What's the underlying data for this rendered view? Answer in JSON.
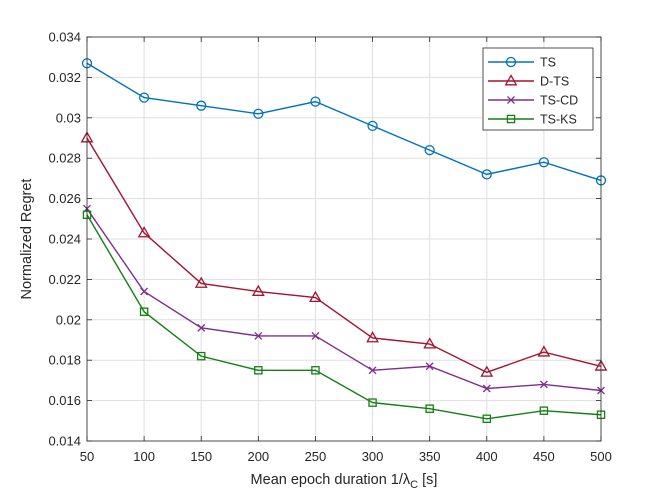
{
  "chart_data": {
    "type": "line",
    "title": "",
    "xlabel": "Mean epoch duration 1/λ",
    "xlabel_subscript": "C",
    "xlabel_unit": "[s]",
    "ylabel": "Normalized Regret",
    "xlim": [
      50,
      500
    ],
    "ylim": [
      0.014,
      0.034
    ],
    "grid": true,
    "legend_position": "top-right",
    "x": [
      50,
      100,
      150,
      200,
      250,
      300,
      350,
      400,
      450,
      500
    ],
    "x_tick_labels": [
      "50",
      "100",
      "150",
      "200",
      "250",
      "300",
      "350",
      "400",
      "450",
      "500"
    ],
    "y_ticks": [
      0.014,
      0.016,
      0.018,
      0.02,
      0.022,
      0.024,
      0.026,
      0.028,
      0.03,
      0.032,
      0.034
    ],
    "y_tick_labels": [
      "0.014",
      "0.016",
      "0.018",
      "0.02",
      "0.022",
      "0.024",
      "0.026",
      "0.028",
      "0.03",
      "0.032",
      "0.034"
    ],
    "series": [
      {
        "name": "TS",
        "color": "#0072BD",
        "marker": "circle",
        "values": [
          0.0327,
          0.031,
          0.0306,
          0.0302,
          0.0308,
          0.0296,
          0.0284,
          0.0272,
          0.0278,
          0.0269
        ]
      },
      {
        "name": "D-TS",
        "color": "#A2142F",
        "marker": "triangle",
        "values": [
          0.029,
          0.0243,
          0.0218,
          0.0214,
          0.0211,
          0.0191,
          0.0188,
          0.0174,
          0.0184,
          0.0177
        ]
      },
      {
        "name": "TS-CD",
        "color": "#7E2F8E",
        "marker": "x",
        "values": [
          0.0255,
          0.0214,
          0.0196,
          0.0192,
          0.0192,
          0.0175,
          0.0177,
          0.0166,
          0.0168,
          0.0165
        ]
      },
      {
        "name": "TS-KS",
        "color": "#138013",
        "marker": "square",
        "values": [
          0.0252,
          0.0204,
          0.0182,
          0.0175,
          0.0175,
          0.0159,
          0.0156,
          0.0151,
          0.0155,
          0.0153
        ]
      }
    ]
  }
}
